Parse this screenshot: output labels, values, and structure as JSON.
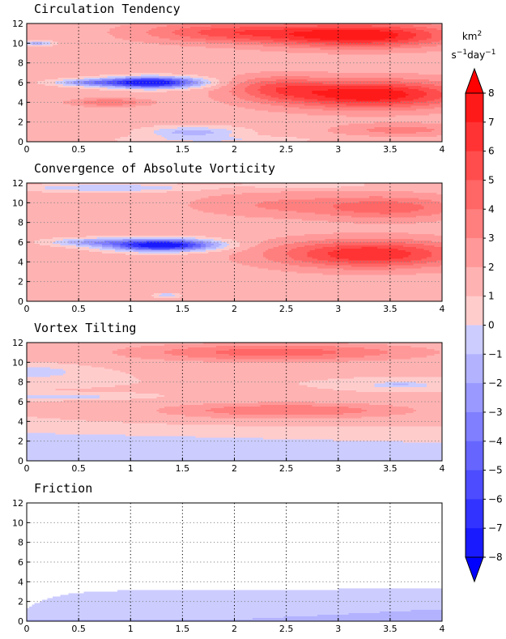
{
  "chart_data": {
    "type": "heatmap",
    "xlim": [
      0,
      4
    ],
    "ylim": [
      0,
      12
    ],
    "x_ticks": [
      0,
      0.5,
      1,
      1.5,
      2,
      2.5,
      3,
      3.5,
      4
    ],
    "x_tick_labels": [
      "0",
      "0.5",
      "1",
      "1.5",
      "2",
      "2.5",
      "3",
      "3.5",
      "4"
    ],
    "y_ticks": [
      0,
      2,
      4,
      6,
      8,
      10,
      12
    ],
    "y_tick_labels": [
      "0",
      "2",
      "4",
      "6",
      "8",
      "10",
      "12"
    ],
    "grid": "dotted",
    "colorbar": {
      "unit_lines": [
        "km2",
        "s-1 day-1"
      ],
      "unit_text": "km² s⁻¹day⁻¹",
      "levels": [
        -8,
        -7,
        -6,
        -5,
        -4,
        -3,
        -2,
        -1,
        0,
        1,
        2,
        3,
        4,
        5,
        6,
        7,
        8
      ],
      "tick_labels": [
        "8",
        "7",
        "6",
        "5",
        "4",
        "3",
        "2",
        "1",
        "0",
        "−1",
        "−2",
        "−3",
        "−4",
        "−5",
        "−6",
        "−7",
        "−8"
      ],
      "colors_neg": [
        "#1a1aff",
        "#3333ff",
        "#4d4dff",
        "#6666ff",
        "#7f7fff",
        "#9999ff",
        "#b2b2ff",
        "#ccccff"
      ],
      "colors_pos": [
        "#ffcccc",
        "#ffb2b2",
        "#ff9999",
        "#ff7f7f",
        "#ff6666",
        "#ff4d4d",
        "#ff3333",
        "#ff1a1a"
      ],
      "extend": "both"
    },
    "panels": [
      {
        "title": "Circulation Tendency",
        "features": [
          {
            "type": "background",
            "value": 1.5
          },
          {
            "type": "blob",
            "x": 3.2,
            "y": 10.8,
            "sx": 0.9,
            "sy": 1.2,
            "amp": 6.5
          },
          {
            "type": "blob",
            "x": 1.9,
            "y": 11.1,
            "sx": 0.8,
            "sy": 1.0,
            "amp": 3.5
          },
          {
            "type": "blob",
            "x": 3.3,
            "y": 4.8,
            "sx": 0.9,
            "sy": 1.4,
            "amp": 6.5
          },
          {
            "type": "blob",
            "x": 2.4,
            "y": 5.5,
            "sx": 0.45,
            "sy": 1.2,
            "amp": 2.5
          },
          {
            "type": "blob",
            "x": 3.6,
            "y": 1.2,
            "sx": 0.6,
            "sy": 0.6,
            "amp": 2.0
          },
          {
            "type": "blob",
            "x": 1.2,
            "y": 6.0,
            "sx": 0.45,
            "sy": 0.55,
            "amp": -10.0
          },
          {
            "type": "blob",
            "x": 0.6,
            "y": 6.0,
            "sx": 0.35,
            "sy": 0.35,
            "amp": -3.5
          },
          {
            "type": "blob",
            "x": 0.8,
            "y": 4.0,
            "sx": 0.35,
            "sy": 0.4,
            "amp": 2.5
          },
          {
            "type": "blob",
            "x": 0.1,
            "y": 10.0,
            "sx": 0.15,
            "sy": 0.3,
            "amp": -3.0
          },
          {
            "type": "blob",
            "x": 1.6,
            "y": 1.0,
            "sx": 0.45,
            "sy": 0.55,
            "amp": -3.0
          },
          {
            "type": "blob",
            "x": 1.8,
            "y": 0.2,
            "sx": 0.9,
            "sy": 0.4,
            "amp": -1.5
          }
        ]
      },
      {
        "title": "Convergence of Absolute Vorticity",
        "features": [
          {
            "type": "background",
            "value": 1.5
          },
          {
            "type": "blob",
            "x": 3.3,
            "y": 4.8,
            "sx": 0.9,
            "sy": 1.4,
            "amp": 5.5
          },
          {
            "type": "blob",
            "x": 3.5,
            "y": 9.5,
            "sx": 0.7,
            "sy": 1.2,
            "amp": 3.0
          },
          {
            "type": "blob",
            "x": 2.4,
            "y": 9.8,
            "sx": 0.8,
            "sy": 1.2,
            "amp": 1.5
          },
          {
            "type": "blob",
            "x": 1.3,
            "y": 5.7,
            "sx": 0.5,
            "sy": 0.6,
            "amp": -10.0
          },
          {
            "type": "blob",
            "x": 0.6,
            "y": 6.0,
            "sx": 0.4,
            "sy": 0.4,
            "amp": -3.0
          },
          {
            "type": "blob",
            "x": 0.8,
            "y": 11.5,
            "sx": 0.9,
            "sy": 0.4,
            "amp": -2.5
          },
          {
            "type": "blob",
            "x": 2.7,
            "y": 11.8,
            "sx": 0.6,
            "sy": 0.3,
            "amp": -1.5
          },
          {
            "type": "blob",
            "x": 1.35,
            "y": 0.6,
            "sx": 0.12,
            "sy": 0.25,
            "amp": -2.5
          }
        ]
      },
      {
        "title": "Vortex Tilting",
        "features": [
          {
            "type": "background",
            "value": 1.0
          },
          {
            "type": "bottom_band",
            "y_start": 3.0,
            "y_end": 2.0,
            "width": 0.35,
            "value": -0.6
          },
          {
            "type": "blob",
            "x": 2.4,
            "y": 11.0,
            "sx": 1.4,
            "sy": 0.9,
            "amp": 3.6
          },
          {
            "type": "blob",
            "x": 2.5,
            "y": 5.1,
            "sx": 1.2,
            "sy": 0.8,
            "amp": 3.0
          },
          {
            "type": "blob",
            "x": 0.1,
            "y": 9.0,
            "sx": 0.35,
            "sy": 0.55,
            "amp": -2.0
          },
          {
            "type": "blob",
            "x": 0.35,
            "y": 6.5,
            "sx": 0.5,
            "sy": 0.2,
            "amp": -2.0
          },
          {
            "type": "blob",
            "x": 3.6,
            "y": 7.7,
            "sx": 0.3,
            "sy": 0.3,
            "amp": -2.2
          }
        ]
      },
      {
        "title": "Friction",
        "features": [
          {
            "type": "friction"
          }
        ]
      }
    ]
  }
}
